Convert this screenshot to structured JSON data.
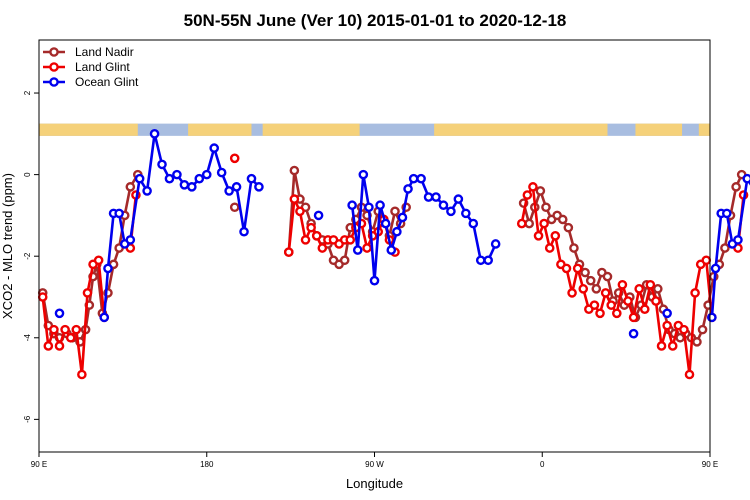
{
  "chart_data": {
    "type": "line",
    "title": "50N-55N June (Ver 10)   2015-01-01 to 2020-12-18",
    "xlabel": "Longitude",
    "ylabel": "XCO2 - MLO trend (ppm)",
    "xlim": [
      90,
      450
    ],
    "ylim": [
      -6.8,
      3.3
    ],
    "x_ticks": [
      {
        "value": 90,
        "label": "90 E"
      },
      {
        "value": 180,
        "label": "180"
      },
      {
        "value": 270,
        "label": "90 W"
      },
      {
        "value": 360,
        "label": "0"
      },
      {
        "value": 450,
        "label": "90 E"
      },
      {
        "value": 540,
        "label": "180"
      }
    ],
    "y_ticks": [
      {
        "value": 2,
        "label": "2"
      },
      {
        "value": 0,
        "label": "0"
      },
      {
        "value": -2,
        "label": "-2"
      },
      {
        "value": -4,
        "label": "-4"
      },
      {
        "value": -6,
        "label": "-6"
      }
    ],
    "land_band": {
      "y_top": 1.25,
      "y_bottom": 0.95,
      "land_color": "#f5d17a",
      "ocean_color": "#a8bde0"
    },
    "legend_position": "top-left",
    "series": [
      {
        "name": "Land Nadir",
        "color": "#a52a2a",
        "segments": [
          [
            [
              92,
              -2.9
            ],
            [
              95,
              -3.7
            ],
            [
              98,
              -3.9
            ],
            [
              101,
              -4.0
            ],
            [
              105,
              -3.9
            ],
            [
              108,
              -4.0
            ],
            [
              112,
              -4.1
            ],
            [
              115,
              -3.8
            ],
            [
              117,
              -3.2
            ],
            [
              119,
              -2.5
            ],
            [
              121,
              -2.2
            ],
            [
              124,
              -3.4
            ],
            [
              127,
              -2.9
            ],
            [
              130,
              -2.2
            ],
            [
              133,
              -1.8
            ],
            [
              136,
              -1.0
            ],
            [
              139,
              -0.3
            ],
            [
              143,
              0.0
            ]
          ],
          [
            [
              195,
              -0.8
            ]
          ],
          [
            [
              224,
              -1.9
            ],
            [
              227,
              0.1
            ],
            [
              230,
              -0.6
            ],
            [
              233,
              -0.8
            ],
            [
              236,
              -1.2
            ],
            [
              239,
              -1.5
            ],
            [
              242,
              -1.6
            ],
            [
              245,
              -1.7
            ],
            [
              248,
              -2.1
            ],
            [
              251,
              -2.2
            ],
            [
              254,
              -2.1
            ],
            [
              257,
              -1.3
            ],
            [
              260,
              -1.1
            ],
            [
              263,
              -0.8
            ],
            [
              266,
              -1.0
            ],
            [
              269,
              -1.4
            ],
            [
              272,
              -0.9
            ],
            [
              275,
              -1.1
            ],
            [
              278,
              -1.5
            ],
            [
              281,
              -0.9
            ],
            [
              284,
              -1.2
            ],
            [
              287,
              -0.8
            ]
          ],
          [
            [
              350,
              -0.7
            ],
            [
              353,
              -1.2
            ],
            [
              356,
              -0.8
            ],
            [
              359,
              -0.4
            ],
            [
              362,
              -0.8
            ],
            [
              365,
              -1.1
            ],
            [
              368,
              -1.0
            ],
            [
              371,
              -1.1
            ],
            [
              374,
              -1.3
            ],
            [
              377,
              -1.8
            ],
            [
              380,
              -2.2
            ],
            [
              383,
              -2.4
            ],
            [
              386,
              -2.6
            ],
            [
              389,
              -2.8
            ],
            [
              392,
              -2.4
            ],
            [
              395,
              -2.5
            ],
            [
              398,
              -3.1
            ],
            [
              401,
              -2.9
            ],
            [
              404,
              -3.2
            ],
            [
              407,
              -3.0
            ],
            [
              410,
              -3.5
            ],
            [
              413,
              -3.2
            ],
            [
              416,
              -2.7
            ],
            [
              419,
              -3.0
            ],
            [
              422,
              -2.8
            ],
            [
              425,
              -3.3
            ],
            [
              428,
              -3.8
            ],
            [
              431,
              -3.9
            ],
            [
              434,
              -4.0
            ],
            [
              437,
              -3.9
            ],
            [
              440,
              -4.0
            ],
            [
              443,
              -4.1
            ],
            [
              446,
              -3.8
            ],
            [
              449,
              -3.2
            ],
            [
              452,
              -2.5
            ],
            [
              455,
              -2.2
            ],
            [
              458,
              -1.8
            ],
            [
              461,
              -1.0
            ],
            [
              464,
              -0.3
            ],
            [
              467,
              0.0
            ]
          ]
        ]
      },
      {
        "name": "Land Glint",
        "color": "#ee0000",
        "segments": [
          [
            [
              92,
              -3.0
            ],
            [
              95,
              -4.2
            ],
            [
              98,
              -3.8
            ],
            [
              101,
              -4.2
            ],
            [
              104,
              -3.8
            ],
            [
              107,
              -4.0
            ],
            [
              110,
              -3.8
            ],
            [
              113,
              -4.9
            ],
            [
              116,
              -2.9
            ],
            [
              119,
              -2.2
            ],
            [
              122,
              -2.1
            ],
            [
              125,
              -3.5
            ]
          ],
          [
            [
              139,
              -1.8
            ],
            [
              142,
              -0.5
            ]
          ],
          [
            [
              195,
              0.4
            ]
          ],
          [
            [
              224,
              -1.9
            ],
            [
              227,
              -0.6
            ],
            [
              230,
              -0.9
            ],
            [
              233,
              -1.6
            ],
            [
              236,
              -1.3
            ],
            [
              239,
              -1.5
            ],
            [
              242,
              -1.8
            ],
            [
              245,
              -1.6
            ],
            [
              248,
              -1.6
            ],
            [
              251,
              -1.7
            ],
            [
              254,
              -1.6
            ],
            [
              257,
              -1.6
            ],
            [
              260,
              -1.3
            ],
            [
              263,
              -1.2
            ],
            [
              266,
              -1.8
            ],
            [
              269,
              -1.5
            ],
            [
              272,
              -1.4
            ],
            [
              275,
              -1.1
            ],
            [
              278,
              -1.6
            ],
            [
              281,
              -1.9
            ]
          ],
          [
            [
              349,
              -1.2
            ],
            [
              352,
              -0.5
            ],
            [
              355,
              -0.3
            ],
            [
              358,
              -1.5
            ],
            [
              361,
              -1.2
            ],
            [
              364,
              -1.8
            ],
            [
              367,
              -1.5
            ],
            [
              370,
              -2.2
            ],
            [
              373,
              -2.3
            ],
            [
              376,
              -2.9
            ],
            [
              379,
              -2.3
            ],
            [
              382,
              -2.8
            ],
            [
              385,
              -3.3
            ],
            [
              388,
              -3.2
            ],
            [
              391,
              -3.4
            ],
            [
              394,
              -2.9
            ],
            [
              397,
              -3.2
            ],
            [
              400,
              -3.4
            ],
            [
              403,
              -2.7
            ],
            [
              406,
              -3.1
            ],
            [
              409,
              -3.5
            ],
            [
              412,
              -2.8
            ],
            [
              415,
              -3.3
            ],
            [
              418,
              -2.7
            ],
            [
              421,
              -3.1
            ],
            [
              424,
              -4.2
            ],
            [
              427,
              -3.7
            ],
            [
              430,
              -4.2
            ],
            [
              433,
              -3.7
            ],
            [
              436,
              -3.8
            ],
            [
              439,
              -4.9
            ],
            [
              442,
              -2.9
            ],
            [
              445,
              -2.2
            ],
            [
              448,
              -2.1
            ],
            [
              451,
              -3.5
            ]
          ],
          [
            [
              465,
              -1.8
            ],
            [
              468,
              -0.5
            ]
          ]
        ]
      },
      {
        "name": "Ocean Glint",
        "color": "#0000ee",
        "segments": [
          [
            [
              101,
              -3.4
            ]
          ],
          [
            [
              125,
              -3.5
            ],
            [
              127,
              -2.3
            ],
            [
              130,
              -0.95
            ],
            [
              133,
              -0.95
            ],
            [
              136,
              -1.7
            ],
            [
              139,
              -1.6
            ],
            [
              144,
              -0.1
            ],
            [
              148,
              -0.4
            ],
            [
              152,
              1.0
            ],
            [
              156,
              0.25
            ],
            [
              160,
              -0.1
            ],
            [
              164,
              0.0
            ],
            [
              168,
              -0.25
            ],
            [
              172,
              -0.3
            ],
            [
              176,
              -0.1
            ],
            [
              180,
              0.0
            ],
            [
              184,
              0.65
            ],
            [
              188,
              0.05
            ],
            [
              192,
              -0.4
            ],
            [
              196,
              -0.3
            ],
            [
              200,
              -1.4
            ],
            [
              204,
              -0.1
            ],
            [
              208,
              -0.3
            ]
          ],
          [
            [
              240,
              -1.0
            ]
          ],
          [
            [
              258,
              -0.75
            ],
            [
              261,
              -1.85
            ],
            [
              264,
              0.0
            ],
            [
              267,
              -0.8
            ],
            [
              270,
              -2.6
            ],
            [
              273,
              -0.75
            ],
            [
              276,
              -1.2
            ],
            [
              279,
              -1.85
            ],
            [
              282,
              -1.4
            ],
            [
              285,
              -1.05
            ],
            [
              288,
              -0.35
            ],
            [
              291,
              -0.1
            ],
            [
              295,
              -0.1
            ],
            [
              299,
              -0.55
            ],
            [
              303,
              -0.55
            ],
            [
              307,
              -0.75
            ],
            [
              311,
              -0.9
            ],
            [
              315,
              -0.6
            ],
            [
              319,
              -0.95
            ],
            [
              323,
              -1.2
            ],
            [
              327,
              -2.1
            ],
            [
              331,
              -2.1
            ],
            [
              335,
              -1.7
            ]
          ],
          [
            [
              409,
              -3.9
            ]
          ],
          [
            [
              427,
              -3.4
            ]
          ],
          [
            [
              451,
              -3.5
            ],
            [
              453,
              -2.3
            ],
            [
              456,
              -0.95
            ],
            [
              459,
              -0.95
            ],
            [
              462,
              -1.7
            ],
            [
              465,
              -1.6
            ],
            [
              470,
              -0.1
            ],
            [
              474,
              -0.4
            ],
            [
              478,
              1.0
            ]
          ]
        ]
      }
    ]
  }
}
